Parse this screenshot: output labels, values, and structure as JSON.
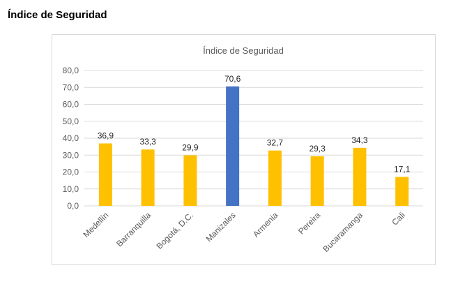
{
  "page": {
    "heading": "Índice de Seguridad"
  },
  "colors": {
    "default_bar": "#ffc000",
    "highlight_bar": "#4472c4",
    "gridline": "#d9d9d9",
    "text": "#595959",
    "label": "#262626"
  },
  "chart_data": {
    "type": "bar",
    "title": "Índice de Seguridad",
    "xlabel": "",
    "ylabel": "",
    "categories": [
      "Medellín",
      "Barranquilla",
      "Bogotá, D.C.",
      "Manizales",
      "Armenia",
      "Pereira",
      "Bucaramanga",
      "Cali"
    ],
    "values": [
      36.9,
      33.3,
      29.9,
      70.6,
      32.7,
      29.3,
      34.3,
      17.1
    ],
    "value_labels": [
      "36,9",
      "33,3",
      "29,9",
      "70,6",
      "32,7",
      "29,3",
      "34,3",
      "17,1"
    ],
    "highlight_category": "Manizales",
    "ylim": [
      0,
      80
    ],
    "ytick_values": [
      0,
      10,
      20,
      30,
      40,
      50,
      60,
      70,
      80
    ],
    "ytick_labels": [
      "0,0",
      "10,0",
      "20,0",
      "30,0",
      "40,0",
      "50,0",
      "60,0",
      "70,0",
      "80,0"
    ],
    "grid": true,
    "legend": "none"
  }
}
